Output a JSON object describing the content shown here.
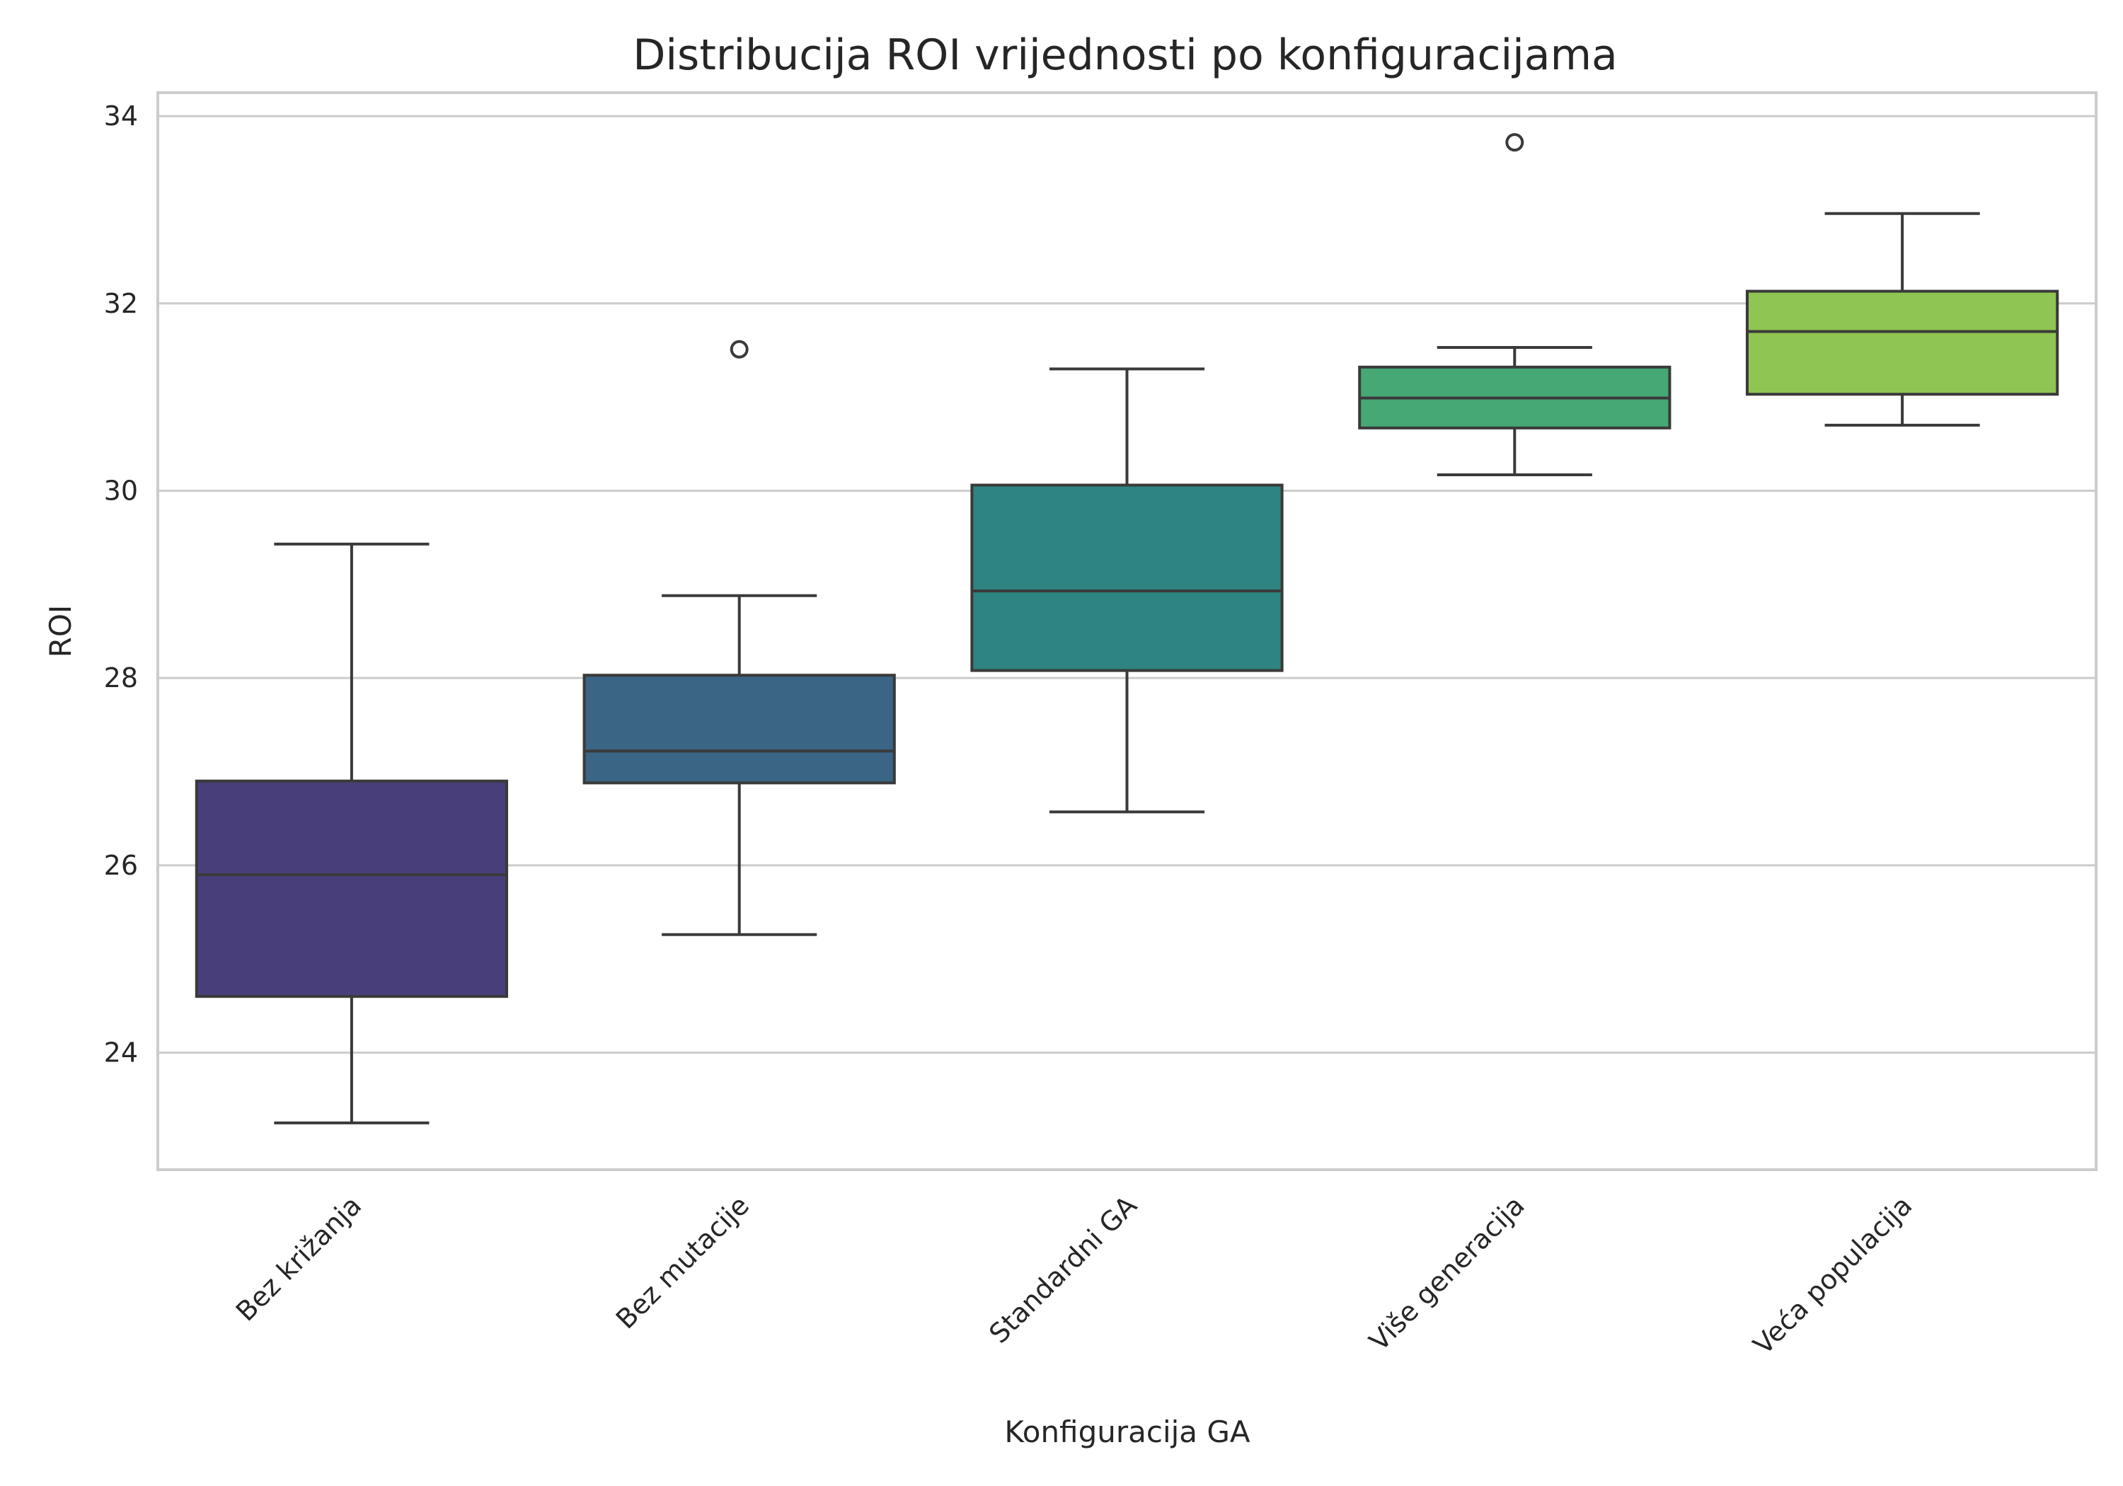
{
  "chart_data": {
    "type": "box",
    "title": "Distribucija ROI vrijednosti po konfiguracijama",
    "xlabel": "Konfiguracija GA",
    "ylabel": "ROI",
    "ylim": [
      22.75,
      34.25
    ],
    "yticks": [
      24,
      26,
      28,
      30,
      32,
      34
    ],
    "grid": "horizontal",
    "categories": [
      "Bez križanja",
      "Bez mutacije",
      "Standardni GA",
      "Više generacija",
      "Veća populacija"
    ],
    "boxes": [
      {
        "category": "Bez križanja",
        "whisker_low": 23.25,
        "q1": 24.6,
        "median": 25.9,
        "q3": 26.9,
        "whisker_high": 29.43,
        "outliers": [],
        "color": "#483f7a"
      },
      {
        "category": "Bez mutacije",
        "whisker_low": 25.26,
        "q1": 26.88,
        "median": 27.22,
        "q3": 28.03,
        "whisker_high": 28.88,
        "outliers": [
          31.51
        ],
        "color": "#3b6584"
      },
      {
        "category": "Standardni GA",
        "whisker_low": 26.57,
        "q1": 28.08,
        "median": 28.93,
        "q3": 30.06,
        "whisker_high": 31.3,
        "outliers": [],
        "color": "#2e8480"
      },
      {
        "category": "Više generacija",
        "whisker_low": 30.17,
        "q1": 30.67,
        "median": 30.99,
        "q3": 31.32,
        "whisker_high": 31.53,
        "outliers": [
          33.72
        ],
        "color": "#45a875"
      },
      {
        "category": "Veća populacija",
        "whisker_low": 30.7,
        "q1": 31.03,
        "median": 31.7,
        "q3": 32.13,
        "whisker_high": 32.96,
        "outliers": [],
        "color": "#8fc552"
      }
    ]
  }
}
